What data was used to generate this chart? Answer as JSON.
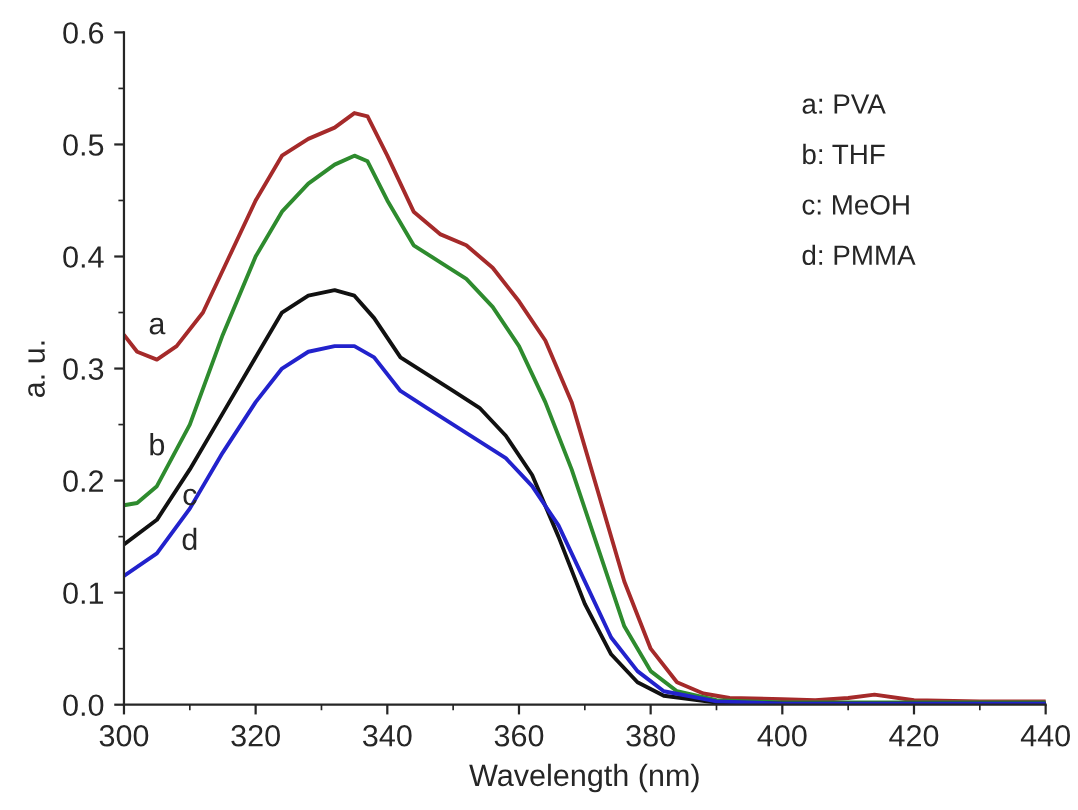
{
  "chart_data": {
    "type": "line",
    "xlabel": "Wavelength (nm)",
    "ylabel": "a. u.",
    "xlim": [
      300,
      440
    ],
    "ylim": [
      0,
      0.6
    ],
    "xticks": [
      300,
      320,
      340,
      360,
      380,
      400,
      420,
      440
    ],
    "yticks": [
      {
        "value": 0,
        "label": "0.0"
      },
      {
        "value": 0.1,
        "label": "0.1"
      },
      {
        "value": 0.2,
        "label": "0.2"
      },
      {
        "value": 0.3,
        "label": "0.3"
      },
      {
        "value": 0.4,
        "label": "0.4"
      },
      {
        "value": 0.5,
        "label": "0.5"
      },
      {
        "value": 0.6,
        "label": "0.6"
      }
    ],
    "grid": false,
    "legend": false,
    "marker": "none",
    "line_style": "solid",
    "series": [
      {
        "name": "a",
        "color": "#a52a2a",
        "x": [
          300,
          302,
          305,
          308,
          312,
          316,
          320,
          324,
          328,
          332,
          335,
          337,
          340,
          344,
          348,
          352,
          356,
          360,
          364,
          368,
          372,
          376,
          380,
          384,
          388,
          392,
          400,
          405,
          410,
          414,
          420,
          430,
          440
        ],
        "values": [
          0.33,
          0.315,
          0.308,
          0.32,
          0.35,
          0.4,
          0.45,
          0.49,
          0.505,
          0.515,
          0.528,
          0.525,
          0.49,
          0.44,
          0.42,
          0.41,
          0.39,
          0.36,
          0.325,
          0.27,
          0.19,
          0.11,
          0.05,
          0.02,
          0.01,
          0.006,
          0.005,
          0.004,
          0.006,
          0.009,
          0.004,
          0.003,
          0.003
        ]
      },
      {
        "name": "b",
        "color": "#2e8b2e",
        "x": [
          300,
          302,
          305,
          310,
          315,
          320,
          324,
          328,
          332,
          335,
          337,
          340,
          344,
          348,
          352,
          356,
          360,
          364,
          368,
          372,
          376,
          380,
          384,
          390,
          400,
          440
        ],
        "values": [
          0.178,
          0.18,
          0.195,
          0.25,
          0.33,
          0.4,
          0.44,
          0.465,
          0.482,
          0.49,
          0.485,
          0.45,
          0.41,
          0.395,
          0.38,
          0.355,
          0.32,
          0.27,
          0.21,
          0.14,
          0.07,
          0.03,
          0.012,
          0.004,
          0.002,
          0.002
        ]
      },
      {
        "name": "c",
        "color": "#111111",
        "x": [
          300,
          305,
          310,
          315,
          320,
          324,
          328,
          332,
          335,
          338,
          342,
          346,
          350,
          354,
          358,
          362,
          366,
          370,
          374,
          378,
          382,
          390,
          400,
          440
        ],
        "values": [
          0.143,
          0.165,
          0.21,
          0.26,
          0.31,
          0.35,
          0.365,
          0.37,
          0.365,
          0.345,
          0.31,
          0.295,
          0.28,
          0.265,
          0.24,
          0.205,
          0.15,
          0.09,
          0.045,
          0.02,
          0.008,
          0.002,
          0.001,
          0.001
        ]
      },
      {
        "name": "d",
        "color": "#2222cc",
        "x": [
          300,
          305,
          310,
          315,
          320,
          324,
          328,
          332,
          335,
          338,
          342,
          346,
          350,
          354,
          358,
          362,
          366,
          370,
          374,
          378,
          382,
          390,
          400,
          440
        ],
        "values": [
          0.115,
          0.135,
          0.175,
          0.225,
          0.27,
          0.3,
          0.315,
          0.32,
          0.32,
          0.31,
          0.28,
          0.265,
          0.25,
          0.235,
          0.22,
          0.195,
          0.16,
          0.11,
          0.06,
          0.03,
          0.012,
          0.003,
          0.001,
          0.001
        ]
      }
    ],
    "annotations": [
      "a: PVA",
      "b: THF",
      "c: MeOH",
      "d: PMMA"
    ]
  }
}
